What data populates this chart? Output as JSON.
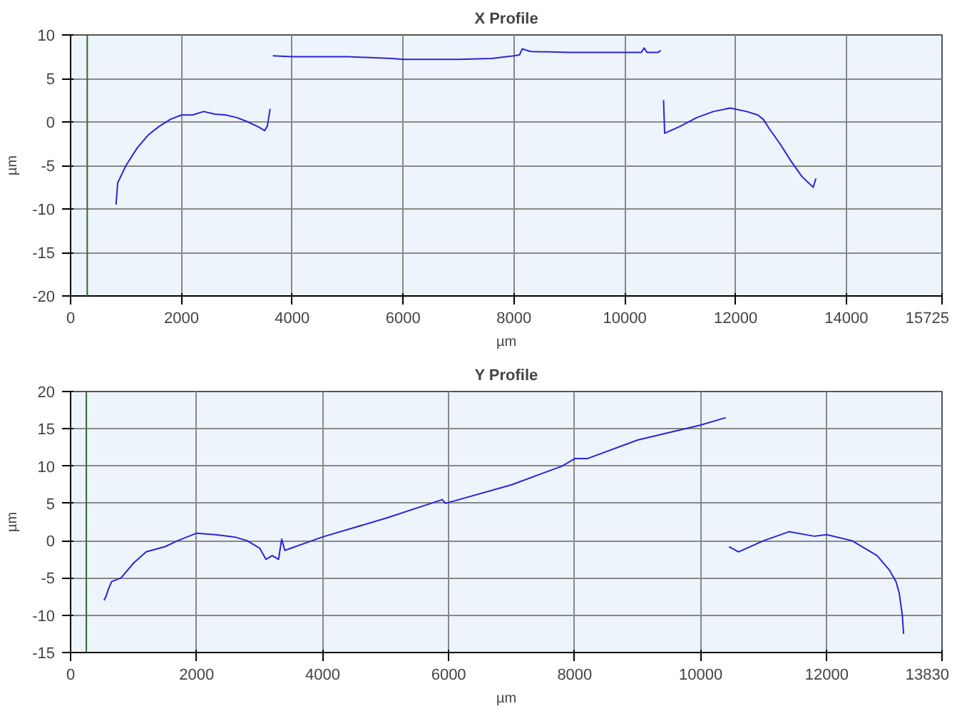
{
  "chart_data": [
    {
      "type": "line",
      "title": "X Profile",
      "xlabel": "µm",
      "ylabel": "µm",
      "xlim": [
        0,
        15725
      ],
      "xticks": [
        0,
        2000,
        4000,
        6000,
        8000,
        10000,
        12000,
        14000,
        15725
      ],
      "ylim": [
        -20,
        10
      ],
      "yticks": [
        -20,
        -15,
        -10,
        -5,
        0,
        5,
        10
      ],
      "grid": true,
      "ref_lines": [
        {
          "axis": "x",
          "value": 300,
          "color": "#336633"
        }
      ],
      "series": [
        {
          "color": "#2626d9",
          "x": [
            820,
            850,
            1000,
            1200,
            1400,
            1600,
            1800,
            2000,
            2200,
            2400,
            2600,
            2800,
            3000,
            3200,
            3400,
            3500,
            3550,
            3600,
            3620,
            3650,
            4000,
            5000,
            5800,
            6000,
            7000,
            7600,
            8000,
            8100,
            8150,
            8300,
            9000,
            10000,
            10300,
            10350,
            10400,
            10600,
            10650,
            10680,
            10700,
            10720,
            11000,
            11300,
            11600,
            11900,
            12200,
            12400,
            12500,
            12600,
            12800,
            13000,
            13200,
            13400,
            13450
          ],
          "values": [
            -9.5,
            -7,
            -5,
            -3,
            -1.5,
            -0.5,
            0.3,
            0.8,
            0.8,
            1.2,
            0.9,
            0.8,
            0.5,
            0,
            -0.6,
            -1,
            -0.5,
            1.5,
            null,
            7.6,
            7.5,
            7.5,
            7.3,
            7.2,
            7.2,
            7.3,
            7.6,
            7.7,
            8.4,
            8.1,
            8,
            8,
            8,
            8.5,
            8,
            8,
            8.2,
            null,
            2.5,
            -1.3,
            -0.5,
            0.5,
            1.2,
            1.6,
            1.2,
            0.8,
            0.3,
            -0.7,
            -2.5,
            -4.5,
            -6.3,
            -7.5,
            -6.5
          ]
        }
      ]
    },
    {
      "type": "line",
      "title": "Y Profile",
      "xlabel": "µm",
      "ylabel": "µm",
      "xlim": [
        0,
        13830
      ],
      "xticks": [
        0,
        2000,
        4000,
        6000,
        8000,
        10000,
        12000,
        13830
      ],
      "ylim": [
        -15,
        20
      ],
      "yticks": [
        -15,
        -10,
        -5,
        0,
        5,
        10,
        15,
        20
      ],
      "grid": true,
      "ref_lines": [
        {
          "axis": "x",
          "value": 250,
          "color": "#336633"
        }
      ],
      "series": [
        {
          "color": "#2626d9",
          "x": [
            530,
            560,
            600,
            650,
            800,
            1000,
            1200,
            1500,
            1700,
            2000,
            2300,
            2600,
            2800,
            3000,
            3100,
            3200,
            3300,
            3350,
            3400,
            4000,
            5000,
            5900,
            5950,
            7000,
            7800,
            8000,
            8200,
            9000,
            10000,
            10400,
            10420,
            10450,
            10600,
            11000,
            11400,
            11800,
            12000,
            12400,
            12800,
            13000,
            13100,
            13150,
            13200,
            13220
          ],
          "values": [
            -8,
            -7.5,
            -6.5,
            -5.5,
            -5,
            -3,
            -1.5,
            -0.8,
            0,
            1,
            0.8,
            0.5,
            0,
            -1,
            -2.5,
            -2,
            -2.5,
            0.2,
            -1.3,
            0.5,
            3,
            5.5,
            5,
            7.5,
            10,
            11,
            11,
            13.5,
            15.5,
            16.5,
            null,
            -0.8,
            -1.5,
            0,
            1.2,
            0.6,
            0.8,
            0,
            -2,
            -4,
            -5.5,
            -7,
            -10,
            -12.5
          ]
        }
      ]
    }
  ]
}
